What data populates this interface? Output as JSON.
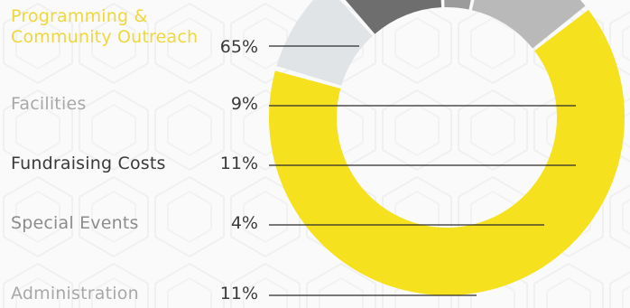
{
  "chart_data": {
    "type": "pie",
    "variant": "donut",
    "categories": [
      "Programming & Community Outreach",
      "Facilities",
      "Fundraising Costs",
      "Special Events",
      "Administration"
    ],
    "values": [
      65,
      9,
      11,
      4,
      11
    ],
    "value_labels": [
      "65%",
      "9%",
      "11%",
      "4%",
      "11%"
    ],
    "colors": [
      "#f5e11e",
      "#e1e4e7",
      "#6e6e6e",
      "#9b9b9b",
      "#b9b9b9"
    ],
    "label_colors": [
      "#f0d73c",
      "#a8a8a8",
      "#3a3a3a",
      "#8c8c8c",
      "#a8a8a8"
    ],
    "leader_lines": true,
    "legend": "left"
  }
}
